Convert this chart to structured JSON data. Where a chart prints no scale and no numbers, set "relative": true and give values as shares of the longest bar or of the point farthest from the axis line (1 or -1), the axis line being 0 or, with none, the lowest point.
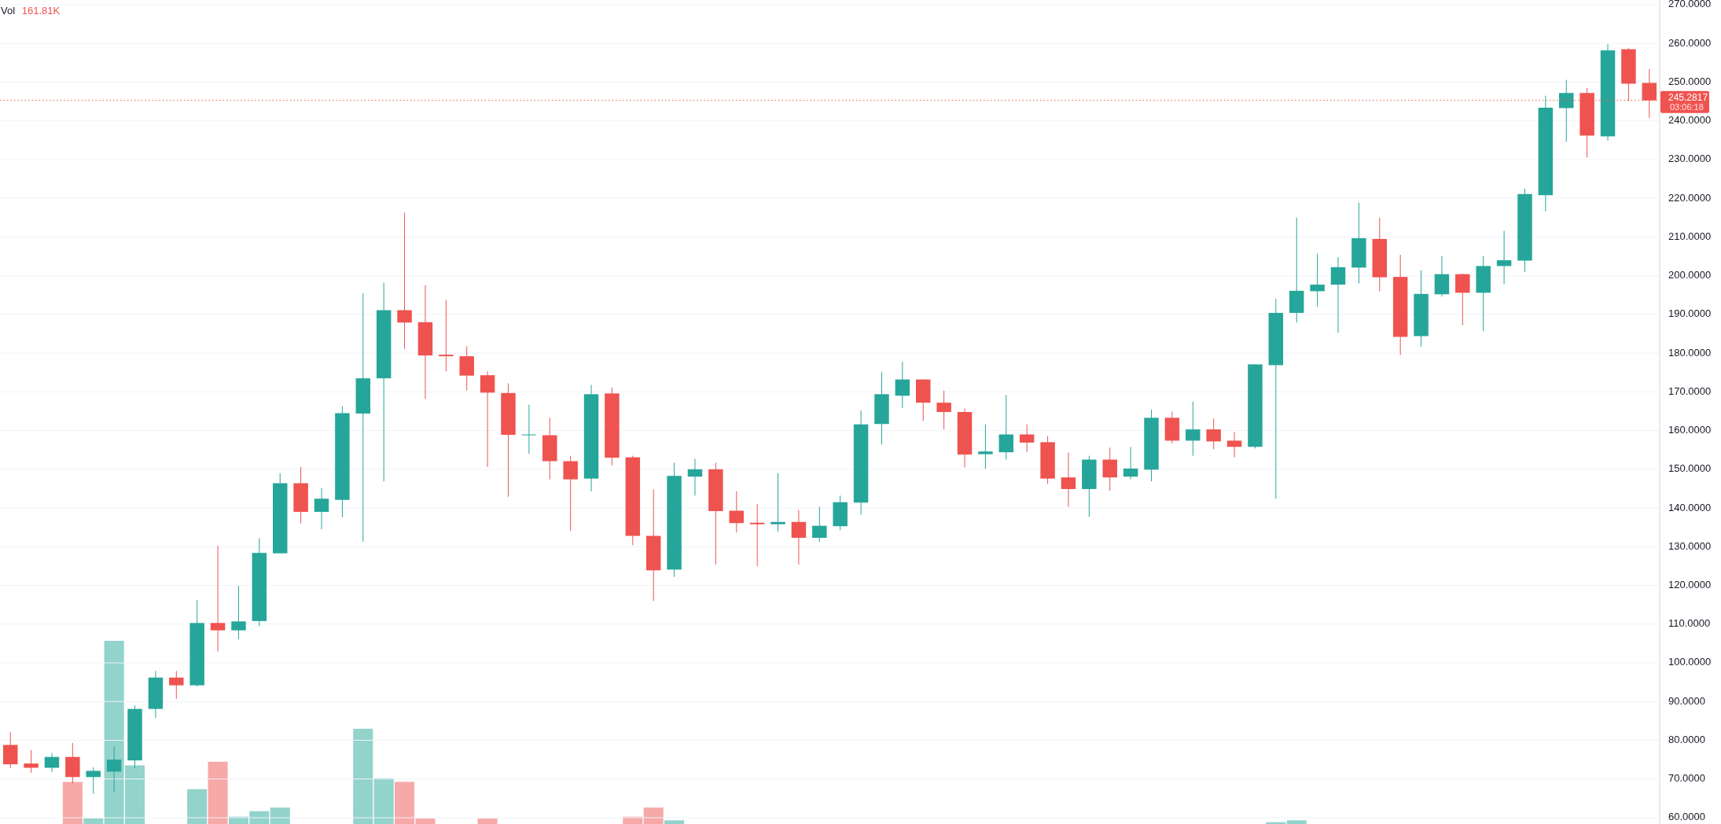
{
  "chart_data": [
    {
      "type": "candlestick",
      "categories": [
        null,
        null,
        null,
        null,
        null,
        null,
        null,
        null,
        null,
        null,
        null,
        null,
        null,
        null,
        null,
        null,
        null,
        null,
        null,
        null,
        null,
        null,
        null,
        null,
        null,
        null,
        null,
        null,
        null,
        null,
        null,
        null,
        null,
        null,
        null,
        null,
        null,
        null,
        null,
        null,
        null,
        null,
        null,
        null,
        null,
        null,
        null,
        null,
        null,
        null,
        null,
        null,
        null,
        null,
        null,
        null,
        null,
        null,
        null,
        null,
        null,
        null,
        null,
        null,
        null,
        null,
        null,
        null,
        null,
        null,
        null,
        null,
        null,
        null,
        null,
        null,
        null,
        null,
        null,
        null
      ],
      "ohlc": [
        [
          78.8,
          82.1,
          72.8,
          73.8
        ],
        [
          74.0,
          77.5,
          71.6,
          72.9
        ],
        [
          72.9,
          76.7,
          71.8,
          75.7
        ],
        [
          75.7,
          79.3,
          68.8,
          70.5
        ],
        [
          70.5,
          73.0,
          66.2,
          72.1
        ],
        [
          71.9,
          78.4,
          66.5,
          75.0
        ],
        [
          74.8,
          89.0,
          72.8,
          88.1
        ],
        [
          88.1,
          97.9,
          85.8,
          96.2
        ],
        [
          96.2,
          97.9,
          90.7,
          94.2
        ],
        [
          94.2,
          116.3,
          93.9,
          110.3
        ],
        [
          110.3,
          130.2,
          102.9,
          108.4
        ],
        [
          108.4,
          119.9,
          106.1,
          110.7
        ],
        [
          110.8,
          132.2,
          109.5,
          128.4
        ],
        [
          128.3,
          149.0,
          128.3,
          146.4
        ],
        [
          146.4,
          150.6,
          136.0,
          139.0
        ],
        [
          139.0,
          145.2,
          134.5,
          142.4
        ],
        [
          142.1,
          166.3,
          137.6,
          164.5
        ],
        [
          164.4,
          195.5,
          131.3,
          173.5
        ],
        [
          173.5,
          198.2,
          146.9,
          191.1
        ],
        [
          191.1,
          216.3,
          181.1,
          187.9
        ],
        [
          188.0,
          197.5,
          168.2,
          179.4
        ],
        [
          179.6,
          193.7,
          175.3,
          179.2
        ],
        [
          179.2,
          181.8,
          170.3,
          174.2
        ],
        [
          174.3,
          175.3,
          150.6,
          169.8
        ],
        [
          169.7,
          172.2,
          142.9,
          158.9
        ],
        [
          158.9,
          166.7,
          154.0,
          159.0
        ],
        [
          158.8,
          163.3,
          147.4,
          152.1
        ],
        [
          152.1,
          153.5,
          134.1,
          147.4
        ],
        [
          147.6,
          171.8,
          144.3,
          169.4
        ],
        [
          169.6,
          171.1,
          151.0,
          153.0
        ],
        [
          153.1,
          153.5,
          130.4,
          132.8
        ],
        [
          132.8,
          144.8,
          116.0,
          123.9
        ],
        [
          124.1,
          151.7,
          122.2,
          148.3
        ],
        [
          148.1,
          152.7,
          143.2,
          150.0
        ],
        [
          150.0,
          151.7,
          125.4,
          139.2
        ],
        [
          139.3,
          144.3,
          133.7,
          136.1
        ],
        [
          136.2,
          141.0,
          125.0,
          135.8
        ],
        [
          135.8,
          149.0,
          133.9,
          136.4
        ],
        [
          136.4,
          139.5,
          125.4,
          132.3
        ],
        [
          132.3,
          140.3,
          131.2,
          135.4
        ],
        [
          135.3,
          143.2,
          134.3,
          141.5
        ],
        [
          141.4,
          165.2,
          138.3,
          161.6
        ],
        [
          161.7,
          175.1,
          156.4,
          169.4
        ],
        [
          169.0,
          177.8,
          165.8,
          173.2
        ],
        [
          173.2,
          173.2,
          162.5,
          167.2
        ],
        [
          167.2,
          170.3,
          160.3,
          164.8
        ],
        [
          164.8,
          165.7,
          150.5,
          153.8
        ],
        [
          153.9,
          161.6,
          150.1,
          154.6
        ],
        [
          154.4,
          169.2,
          152.5,
          159.0
        ],
        [
          159.0,
          161.6,
          154.4,
          156.9
        ],
        [
          157.0,
          158.6,
          146.2,
          147.6
        ],
        [
          147.9,
          154.3,
          140.3,
          144.9
        ],
        [
          144.9,
          153.5,
          137.7,
          152.5
        ],
        [
          152.5,
          155.6,
          144.5,
          147.9
        ],
        [
          148.1,
          155.8,
          147.4,
          150.2
        ],
        [
          149.9,
          165.4,
          146.9,
          163.3
        ],
        [
          163.3,
          164.9,
          156.7,
          157.4
        ],
        [
          157.4,
          167.5,
          153.5,
          160.3
        ],
        [
          160.3,
          163.1,
          155.2,
          157.2
        ],
        [
          157.4,
          159.6,
          153.1,
          155.8
        ],
        [
          155.8,
          177.1,
          155.4,
          177.1
        ],
        [
          176.9,
          194.0,
          142.4,
          190.4
        ],
        [
          190.4,
          215.0,
          187.9,
          196.1
        ],
        [
          196.0,
          205.7,
          192.0,
          197.7
        ],
        [
          197.7,
          204.8,
          185.3,
          202.2
        ],
        [
          202.1,
          218.9,
          198.0,
          209.7
        ],
        [
          209.5,
          215.0,
          196.0,
          199.6
        ],
        [
          199.7,
          205.4,
          179.5,
          184.2
        ],
        [
          184.4,
          201.4,
          181.7,
          195.3
        ],
        [
          195.2,
          205.1,
          194.6,
          200.4
        ],
        [
          200.4,
          200.6,
          187.2,
          195.6
        ],
        [
          195.6,
          205.1,
          185.7,
          202.5
        ],
        [
          202.5,
          211.6,
          197.8,
          204.0
        ],
        [
          203.9,
          222.5,
          201.0,
          221.1
        ],
        [
          220.8,
          246.5,
          216.7,
          243.4
        ],
        [
          243.3,
          250.6,
          234.6,
          247.2
        ],
        [
          247.2,
          248.5,
          230.5,
          236.2
        ],
        [
          236.0,
          259.8,
          234.9,
          258.2
        ],
        [
          258.5,
          258.8,
          245.1,
          249.6
        ],
        [
          249.8,
          253.4,
          240.8,
          245.2817
        ]
      ],
      "colors": [
        "#ef5350",
        "#ef5350",
        "#26a69a",
        "#ef5350",
        "#26a69a",
        "#26a69a",
        "#26a69a",
        "#26a69a",
        "#ef5350",
        "#26a69a",
        "#ef5350",
        "#26a69a",
        "#26a69a",
        "#26a69a",
        "#ef5350",
        "#26a69a",
        "#26a69a",
        "#26a69a",
        "#26a69a",
        "#ef5350",
        "#ef5350",
        "#ef5350",
        "#ef5350",
        "#ef5350",
        "#ef5350",
        "#26a69a",
        "#ef5350",
        "#ef5350",
        "#26a69a",
        "#ef5350",
        "#ef5350",
        "#ef5350",
        "#26a69a",
        "#26a69a",
        "#ef5350",
        "#ef5350",
        "#ef5350",
        "#26a69a",
        "#ef5350",
        "#26a69a",
        "#26a69a",
        "#26a69a",
        "#26a69a",
        "#26a69a",
        "#ef5350",
        "#ef5350",
        "#ef5350",
        "#26a69a",
        "#26a69a",
        "#ef5350",
        "#ef5350",
        "#ef5350",
        "#26a69a",
        "#ef5350",
        "#26a69a",
        "#26a69a",
        "#ef5350",
        "#26a69a",
        "#ef5350",
        "#ef5350",
        "#26a69a",
        "#26a69a",
        "#26a69a",
        "#26a69a",
        "#26a69a",
        "#26a69a",
        "#ef5350",
        "#ef5350",
        "#26a69a",
        "#26a69a",
        "#ef5350",
        "#26a69a",
        "#26a69a",
        "#26a69a",
        "#26a69a",
        "#26a69a",
        "#ef5350",
        "#26a69a",
        "#ef5350",
        "#ef5350"
      ],
      "ylim": [
        60,
        270
      ],
      "yticks": [
        {
          "value": 60,
          "label": "60.0000"
        },
        {
          "value": 70,
          "label": "70.0000"
        },
        {
          "value": 80,
          "label": "80.0000"
        },
        {
          "value": 90,
          "label": "90.0000"
        },
        {
          "value": 100,
          "label": "100.0000"
        },
        {
          "value": 110,
          "label": "110.0000"
        },
        {
          "value": 120,
          "label": "120.0000"
        },
        {
          "value": 130,
          "label": "130.0000"
        },
        {
          "value": 140,
          "label": "140.0000"
        },
        {
          "value": 150,
          "label": "150.0000"
        },
        {
          "value": 160,
          "label": "160.0000"
        },
        {
          "value": 170,
          "label": "170.0000"
        },
        {
          "value": 180,
          "label": "180.0000"
        },
        {
          "value": 190,
          "label": "190.0000"
        },
        {
          "value": 200,
          "label": "200.0000"
        },
        {
          "value": 210,
          "label": "210.0000"
        },
        {
          "value": 220,
          "label": "220.0000"
        },
        {
          "value": 230,
          "label": "230.0000"
        },
        {
          "value": 240,
          "label": "240.0000"
        },
        {
          "value": 250,
          "label": "250.0000"
        },
        {
          "value": 260,
          "label": "260.0000"
        },
        {
          "value": 270,
          "label": "270.0000"
        }
      ],
      "tick_labels": "y",
      "grid": "y",
      "ref_lines": [
        {
          "axis": "y",
          "value": 245.2817,
          "label": "245.2817",
          "color": "#ef5350",
          "line_style": "dotted"
        }
      ],
      "annotations": [
        "03:06:18"
      ]
    },
    {
      "type": "bar",
      "relative": true,
      "categories": [
        null,
        null,
        null,
        null,
        null,
        null,
        null,
        null,
        null,
        null,
        null,
        null,
        null,
        null,
        null,
        null,
        null,
        null,
        null,
        null,
        null,
        null,
        null,
        null,
        null,
        null,
        null,
        null,
        null,
        null,
        null,
        null,
        null,
        null,
        null,
        null,
        null,
        null,
        null,
        null,
        null,
        null,
        null,
        null,
        null,
        null,
        null,
        null,
        null,
        null,
        null,
        null,
        null,
        null,
        null,
        null,
        null,
        null,
        null,
        null,
        null,
        null,
        null,
        null,
        null,
        null,
        null,
        null,
        null,
        null,
        null,
        null,
        null,
        null,
        null,
        null,
        null,
        null,
        null,
        null
      ],
      "values": [
        null,
        null,
        null,
        0.23,
        0.03,
        1,
        0.32,
        null,
        null,
        0.19,
        0.34,
        0.04,
        0.07,
        0.09,
        null,
        null,
        null,
        0.52,
        0.25,
        0.23,
        0.03,
        null,
        null,
        0.03,
        null,
        null,
        null,
        null,
        null,
        null,
        0.04,
        0.09,
        0.02,
        null,
        null,
        null,
        null,
        null,
        null,
        null,
        null,
        null,
        null,
        null,
        null,
        null,
        null,
        null,
        null,
        null,
        null,
        null,
        null,
        null,
        null,
        null,
        null,
        null,
        null,
        null,
        null,
        0.01,
        0.02,
        null,
        null,
        null,
        null,
        null,
        null,
        null,
        null,
        null,
        null,
        null,
        null,
        null,
        null,
        null,
        null,
        null
      ],
      "colors": [
        null,
        null,
        null,
        "#f7a9a8",
        "#92d3cc",
        "#92d3cc",
        "#92d3cc",
        null,
        null,
        "#92d3cc",
        "#f7a9a8",
        "#92d3cc",
        "#92d3cc",
        "#92d3cc",
        null,
        null,
        null,
        "#92d3cc",
        "#92d3cc",
        "#f7a9a8",
        "#f7a9a8",
        null,
        null,
        "#f7a9a8",
        null,
        null,
        null,
        null,
        null,
        null,
        "#f7a9a8",
        "#f7a9a8",
        "#92d3cc",
        null,
        null,
        null,
        null,
        null,
        null,
        null,
        null,
        null,
        null,
        null,
        null,
        null,
        null,
        null,
        null,
        null,
        null,
        null,
        null,
        null,
        null,
        null,
        null,
        null,
        null,
        null,
        null,
        "#92d3cc",
        "#92d3cc",
        null,
        null,
        null,
        null,
        null,
        null,
        null,
        null,
        null,
        null,
        null,
        null,
        null,
        null,
        null,
        null,
        null
      ],
      "annotations": [
        "Vol",
        "161.81K"
      ]
    }
  ]
}
